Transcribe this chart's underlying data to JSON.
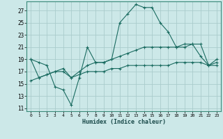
{
  "xlabel": "Humidex (Indice chaleur)",
  "ylabel": "",
  "bg_color": "#cce8e8",
  "grid_color": "#aacccc",
  "line_color": "#1a6b60",
  "xlim": [
    -0.5,
    23.5
  ],
  "ylim": [
    10.5,
    28.5
  ],
  "yticks": [
    11,
    13,
    15,
    17,
    19,
    21,
    23,
    25,
    27
  ],
  "xticks": [
    0,
    1,
    2,
    3,
    4,
    5,
    6,
    7,
    8,
    9,
    10,
    11,
    12,
    13,
    14,
    15,
    16,
    17,
    18,
    19,
    20,
    21,
    22,
    23
  ],
  "series": [
    {
      "x": [
        0,
        1,
        2,
        3,
        4,
        5,
        6,
        7,
        8,
        9,
        10,
        11,
        12,
        13,
        14,
        15,
        16,
        17,
        18,
        19,
        20,
        21,
        22,
        23
      ],
      "y": [
        19,
        18.5,
        18,
        14.5,
        14,
        11.5,
        16,
        21,
        18.5,
        18.5,
        19,
        25,
        26.5,
        28,
        27.5,
        27.5,
        25,
        23.5,
        21,
        21,
        21.5,
        19.5,
        18,
        19
      ]
    },
    {
      "x": [
        0,
        1,
        2,
        3,
        4,
        5,
        6,
        7,
        8,
        9,
        10,
        11,
        12,
        13,
        14,
        15,
        16,
        17,
        18,
        19,
        20,
        21,
        22,
        23
      ],
      "y": [
        19,
        16,
        16.5,
        17,
        17.5,
        16,
        17,
        18,
        18.5,
        18.5,
        19,
        19.5,
        20,
        20.5,
        21,
        21,
        21,
        21,
        21,
        21.5,
        21.5,
        21.5,
        18,
        18.5
      ]
    },
    {
      "x": [
        0,
        1,
        2,
        3,
        4,
        5,
        6,
        7,
        8,
        9,
        10,
        11,
        12,
        13,
        14,
        15,
        16,
        17,
        18,
        19,
        20,
        21,
        22,
        23
      ],
      "y": [
        15.5,
        16,
        16.5,
        17,
        17,
        16,
        16.5,
        17,
        17,
        17,
        17.5,
        17.5,
        18,
        18,
        18,
        18,
        18,
        18,
        18.5,
        18.5,
        18.5,
        18.5,
        18,
        18
      ]
    }
  ]
}
